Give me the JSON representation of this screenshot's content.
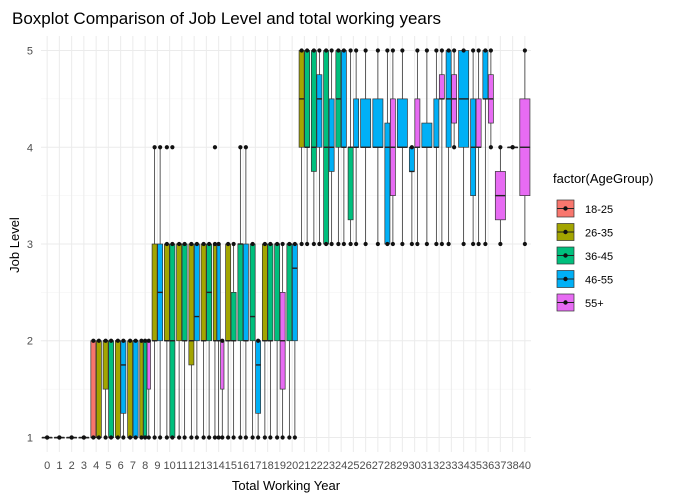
{
  "chart_data": {
    "type": "boxplot",
    "title": "Boxplot Comparison of Job Level and total working years",
    "xlabel": "Total Working Year",
    "ylabel": "Job Level",
    "x_categories": [
      "0",
      "1",
      "2",
      "3",
      "4",
      "5",
      "6",
      "7",
      "8",
      "9",
      "10",
      "11",
      "12",
      "13",
      "14",
      "15",
      "16",
      "17",
      "18",
      "19",
      "20",
      "21",
      "22",
      "23",
      "24",
      "25",
      "26",
      "27",
      "28",
      "29",
      "30",
      "31",
      "32",
      "33",
      "34",
      "35",
      "36",
      "37",
      "38",
      "40"
    ],
    "y_ticks": [
      1,
      2,
      3,
      4,
      5
    ],
    "ylim": [
      0.85,
      5.15
    ],
    "grid": true,
    "legend": {
      "title": "factor(AgeGroup)",
      "position": "right",
      "entries": [
        {
          "name": "18-25",
          "color": "#F8766D"
        },
        {
          "name": "26-35",
          "color": "#A3A500"
        },
        {
          "name": "36-45",
          "color": "#00BF7D"
        },
        {
          "name": "46-55",
          "color": "#00B0F6"
        },
        {
          "name": "55+",
          "color": "#E76BF3"
        }
      ]
    },
    "boxes": [
      {
        "x": "0",
        "group": "18-25",
        "min": 1,
        "q1": 1,
        "median": 1,
        "q3": 1,
        "max": 1,
        "outliers": []
      },
      {
        "x": "1",
        "group": "18-25",
        "min": 1,
        "q1": 1,
        "median": 1,
        "q3": 1,
        "max": 1,
        "outliers": []
      },
      {
        "x": "2",
        "group": "18-25",
        "min": 1,
        "q1": 1,
        "median": 1,
        "q3": 1,
        "max": 1,
        "outliers": []
      },
      {
        "x": "3",
        "group": "18-25",
        "min": 1,
        "q1": 1,
        "median": 1,
        "q3": 1,
        "max": 1,
        "outliers": []
      },
      {
        "x": "4",
        "group": "18-25",
        "min": 1,
        "q1": 1,
        "median": 1,
        "q3": 2,
        "max": 2,
        "outliers": []
      },
      {
        "x": "4",
        "group": "26-35",
        "min": 1,
        "q1": 1,
        "median": 1,
        "q3": 2,
        "max": 2,
        "outliers": []
      },
      {
        "x": "5",
        "group": "26-35",
        "min": 1,
        "q1": 1.5,
        "median": 2,
        "q3": 2,
        "max": 2,
        "outliers": []
      },
      {
        "x": "5",
        "group": "36-45",
        "min": 1,
        "q1": 1,
        "median": 1,
        "q3": 2,
        "max": 2,
        "outliers": []
      },
      {
        "x": "6",
        "group": "26-35",
        "min": 1,
        "q1": 1,
        "median": 2,
        "q3": 2,
        "max": 2,
        "outliers": []
      },
      {
        "x": "6",
        "group": "46-55",
        "min": 1,
        "q1": 1.25,
        "median": 1.75,
        "q3": 2,
        "max": 2,
        "outliers": []
      },
      {
        "x": "7",
        "group": "26-35",
        "min": 1,
        "q1": 1,
        "median": 1,
        "q3": 2,
        "max": 2,
        "outliers": []
      },
      {
        "x": "7",
        "group": "46-55",
        "min": 1,
        "q1": 1,
        "median": 2,
        "q3": 2,
        "max": 2,
        "outliers": []
      },
      {
        "x": "8",
        "group": "26-35",
        "min": 1,
        "q1": 1,
        "median": 2,
        "q3": 2,
        "max": 2,
        "outliers": []
      },
      {
        "x": "8",
        "group": "36-45",
        "min": 1,
        "q1": 1,
        "median": 2,
        "q3": 2,
        "max": 2,
        "outliers": []
      },
      {
        "x": "8",
        "group": "55+",
        "min": 1,
        "q1": 1.5,
        "median": 2,
        "q3": 2,
        "max": 2,
        "outliers": []
      },
      {
        "x": "9",
        "group": "26-35",
        "min": 1,
        "q1": 2,
        "median": 2,
        "q3": 3,
        "max": 4,
        "outliers": []
      },
      {
        "x": "9",
        "group": "46-55",
        "min": 1,
        "q1": 2,
        "median": 2.5,
        "q3": 3,
        "max": 4,
        "outliers": []
      },
      {
        "x": "10",
        "group": "26-35",
        "min": 1,
        "q1": 2,
        "median": 2,
        "q3": 3,
        "max": 3,
        "outliers": [
          4
        ]
      },
      {
        "x": "10",
        "group": "36-45",
        "min": 1,
        "q1": 1,
        "median": 2,
        "q3": 3,
        "max": 3,
        "outliers": [
          4
        ]
      },
      {
        "x": "11",
        "group": "26-35",
        "min": 1,
        "q1": 2,
        "median": 3,
        "q3": 3,
        "max": 3,
        "outliers": []
      },
      {
        "x": "11",
        "group": "36-45",
        "min": 1,
        "q1": 2,
        "median": 2,
        "q3": 3,
        "max": 3,
        "outliers": []
      },
      {
        "x": "12",
        "group": "26-35",
        "min": 1,
        "q1": 1.75,
        "median": 2,
        "q3": 3,
        "max": 3,
        "outliers": []
      },
      {
        "x": "12",
        "group": "46-55",
        "min": 1,
        "q1": 2,
        "median": 2.25,
        "q3": 3,
        "max": 3,
        "outliers": []
      },
      {
        "x": "13",
        "group": "26-35",
        "min": 1,
        "q1": 2,
        "median": 2,
        "q3": 3,
        "max": 3,
        "outliers": []
      },
      {
        "x": "13",
        "group": "36-45",
        "min": 1,
        "q1": 2,
        "median": 2.5,
        "q3": 3,
        "max": 3,
        "outliers": []
      },
      {
        "x": "14",
        "group": "26-35",
        "min": 1,
        "q1": 2,
        "median": 2,
        "q3": 3,
        "max": 3,
        "outliers": [
          4
        ]
      },
      {
        "x": "14",
        "group": "46-55",
        "min": 1,
        "q1": 2,
        "median": 2,
        "q3": 3,
        "max": 3,
        "outliers": []
      },
      {
        "x": "14",
        "group": "55+",
        "min": 1,
        "q1": 1.5,
        "median": 2,
        "q3": 2,
        "max": 2,
        "outliers": []
      },
      {
        "x": "15",
        "group": "26-35",
        "min": 1,
        "q1": 2,
        "median": 2,
        "q3": 3,
        "max": 3,
        "outliers": []
      },
      {
        "x": "15",
        "group": "36-45",
        "min": 1,
        "q1": 2,
        "median": 2,
        "q3": 2.5,
        "max": 3,
        "outliers": []
      },
      {
        "x": "16",
        "group": "36-45",
        "min": 1,
        "q1": 2,
        "median": 3,
        "q3": 3,
        "max": 4,
        "outliers": []
      },
      {
        "x": "16",
        "group": "46-55",
        "min": 1,
        "q1": 2,
        "median": 2,
        "q3": 3,
        "max": 4,
        "outliers": []
      },
      {
        "x": "17",
        "group": "36-45",
        "min": 1,
        "q1": 2,
        "median": 2.25,
        "q3": 3,
        "max": 3,
        "outliers": []
      },
      {
        "x": "17",
        "group": "46-55",
        "min": 1,
        "q1": 1.25,
        "median": 1.75,
        "q3": 2,
        "max": 2,
        "outliers": []
      },
      {
        "x": "18",
        "group": "26-35",
        "min": 1,
        "q1": 2,
        "median": 2,
        "q3": 3,
        "max": 3,
        "outliers": []
      },
      {
        "x": "18",
        "group": "36-45",
        "min": 1,
        "q1": 2,
        "median": 2,
        "q3": 3,
        "max": 3,
        "outliers": []
      },
      {
        "x": "19",
        "group": "36-45",
        "min": 1,
        "q1": 2,
        "median": 3,
        "q3": 3,
        "max": 3,
        "outliers": []
      },
      {
        "x": "19",
        "group": "55+",
        "min": 1,
        "q1": 1.5,
        "median": 2,
        "q3": 2.5,
        "max": 3,
        "outliers": []
      },
      {
        "x": "20",
        "group": "36-45",
        "min": 1,
        "q1": 2,
        "median": 3,
        "q3": 3,
        "max": 3,
        "outliers": []
      },
      {
        "x": "20",
        "group": "46-55",
        "min": 1,
        "q1": 2,
        "median": 2.75,
        "q3": 3,
        "max": 3,
        "outliers": []
      },
      {
        "x": "21",
        "group": "36-45",
        "min": 3,
        "q1": 4,
        "median": 4,
        "q3": 5,
        "max": 5,
        "outliers": []
      },
      {
        "x": "21",
        "group": "26-35",
        "min": 3,
        "q1": 4,
        "median": 4.5,
        "q3": 5,
        "max": 5,
        "outliers": []
      },
      {
        "x": "22",
        "group": "46-55",
        "min": 3,
        "q1": 4,
        "median": 4.5,
        "q3": 4.75,
        "max": 5,
        "outliers": []
      },
      {
        "x": "22",
        "group": "36-45",
        "min": 3,
        "q1": 3.75,
        "median": 4,
        "q3": 5,
        "max": 5,
        "outliers": []
      },
      {
        "x": "23",
        "group": "36-45",
        "min": 3,
        "q1": 3,
        "median": 4,
        "q3": 5,
        "max": 5,
        "outliers": []
      },
      {
        "x": "23",
        "group": "46-55",
        "min": 3,
        "q1": 3.75,
        "median": 4,
        "q3": 4.5,
        "max": 5,
        "outliers": []
      },
      {
        "x": "24",
        "group": "36-45",
        "min": 3,
        "q1": 4,
        "median": 4.5,
        "q3": 5,
        "max": 5,
        "outliers": []
      },
      {
        "x": "24",
        "group": "46-55",
        "min": 3,
        "q1": 4,
        "median": 4,
        "q3": 5,
        "max": 5,
        "outliers": []
      },
      {
        "x": "25",
        "group": "36-45",
        "min": 3,
        "q1": 3.25,
        "median": 4,
        "q3": 4,
        "max": 5,
        "outliers": []
      },
      {
        "x": "25",
        "group": "46-55",
        "min": 3,
        "q1": 4,
        "median": 4,
        "q3": 4.5,
        "max": 5,
        "outliers": []
      },
      {
        "x": "26",
        "group": "46-55",
        "min": 3,
        "q1": 4,
        "median": 4,
        "q3": 4.5,
        "max": 5,
        "outliers": []
      },
      {
        "x": "27",
        "group": "46-55",
        "min": 3,
        "q1": 4,
        "median": 4,
        "q3": 4.5,
        "max": 5,
        "outliers": []
      },
      {
        "x": "28",
        "group": "46-55",
        "min": 3,
        "q1": 3,
        "median": 4,
        "q3": 4.25,
        "max": 5,
        "outliers": []
      },
      {
        "x": "28",
        "group": "55+",
        "min": 3,
        "q1": 3.5,
        "median": 4,
        "q3": 4.5,
        "max": 5,
        "outliers": []
      },
      {
        "x": "29",
        "group": "46-55",
        "min": 3,
        "q1": 4,
        "median": 4,
        "q3": 4.5,
        "max": 5,
        "outliers": []
      },
      {
        "x": "30",
        "group": "46-55",
        "min": 3,
        "q1": 3.75,
        "median": 3.75,
        "q3": 4,
        "max": 4,
        "outliers": []
      },
      {
        "x": "30",
        "group": "55+",
        "min": 3,
        "q1": 4,
        "median": 4,
        "q3": 4.5,
        "max": 5,
        "outliers": []
      },
      {
        "x": "31",
        "group": "46-55",
        "min": 3,
        "q1": 4,
        "median": 4,
        "q3": 4.25,
        "max": 5,
        "outliers": []
      },
      {
        "x": "32",
        "group": "46-55",
        "min": 3,
        "q1": 4,
        "median": 4,
        "q3": 4.5,
        "max": 5,
        "outliers": []
      },
      {
        "x": "32",
        "group": "55+",
        "min": 3,
        "q1": 4.5,
        "median": 4.5,
        "q3": 4.75,
        "max": 5,
        "outliers": []
      },
      {
        "x": "33",
        "group": "46-55",
        "min": 3,
        "q1": 4,
        "median": 4.5,
        "q3": 5,
        "max": 5,
        "outliers": []
      },
      {
        "x": "33",
        "group": "55+",
        "min": 4,
        "q1": 4.25,
        "median": 4.5,
        "q3": 4.75,
        "max": 5,
        "outliers": []
      },
      {
        "x": "34",
        "group": "46-55",
        "min": 3,
        "q1": 4,
        "median": 4.5,
        "q3": 5,
        "max": 5,
        "outliers": []
      },
      {
        "x": "35",
        "group": "46-55",
        "min": 3,
        "q1": 3.5,
        "median": 4,
        "q3": 4.5,
        "max": 5,
        "outliers": []
      },
      {
        "x": "35",
        "group": "55+",
        "min": 3,
        "q1": 4,
        "median": 4,
        "q3": 4.5,
        "max": 5,
        "outliers": []
      },
      {
        "x": "36",
        "group": "46-55",
        "min": 3,
        "q1": 4.5,
        "median": 4.5,
        "q3": 5,
        "max": 5,
        "outliers": []
      },
      {
        "x": "36",
        "group": "55+",
        "min": 4,
        "q1": 4.25,
        "median": 4.5,
        "q3": 4.75,
        "max": 5,
        "outliers": []
      },
      {
        "x": "37",
        "group": "55+",
        "min": 3,
        "q1": 3.25,
        "median": 3.5,
        "q3": 3.75,
        "max": 4,
        "outliers": []
      },
      {
        "x": "38",
        "group": "55+",
        "min": 4,
        "q1": 4,
        "median": 4,
        "q3": 4,
        "max": 4,
        "outliers": []
      },
      {
        "x": "40",
        "group": "55+",
        "min": 3,
        "q1": 3.5,
        "median": 4,
        "q3": 4.5,
        "max": 5,
        "outliers": []
      }
    ]
  }
}
